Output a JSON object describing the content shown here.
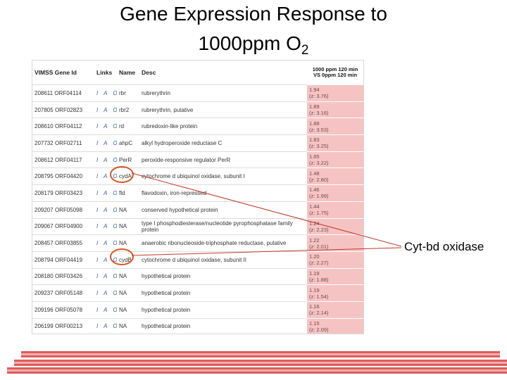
{
  "title": {
    "line1": "Gene Expression Response to",
    "line2": "1000ppm O",
    "line2_sub": "2"
  },
  "table": {
    "headers": {
      "vimss": "VIMSS Gene Id",
      "links": "Links",
      "name": "Name",
      "desc": "Desc",
      "score": "1000 ppm 120 min VS 0ppm 120 min"
    },
    "rows": [
      {
        "vimss": "208611",
        "orf": "ORF04114",
        "links": "I A O",
        "name": "rbr",
        "desc": "rubrerythrin",
        "score": "1.94",
        "z": "(z: 3.76)"
      },
      {
        "vimss": "207805",
        "orf": "ORF02823",
        "links": "I A O",
        "name": "rbr2",
        "desc": "rubrerythrin, putative",
        "score": "1.89",
        "z": "(z: 3.16)"
      },
      {
        "vimss": "208610",
        "orf": "ORF04112",
        "links": "I A O",
        "name": "rd",
        "desc": "rubredoxin-like protein",
        "score": "1.88",
        "z": "(z: 3.53)"
      },
      {
        "vimss": "207732",
        "orf": "ORF02711",
        "links": "I A O",
        "name": "ahpC",
        "desc": "alkyl hydroperoxide reductase C",
        "score": "1.83",
        "z": "(z: 3.25)"
      },
      {
        "vimss": "208612",
        "orf": "ORF04117",
        "links": "I A O",
        "name": "PerR",
        "desc": "peroxide-responsive regulator PerR",
        "score": "1.65",
        "z": "(z: 3.22)"
      },
      {
        "vimss": "208795",
        "orf": "ORF04420",
        "links": "I A O",
        "name": "cydA",
        "desc": "cytochrome d ubiquinol oxidase, subunit I",
        "score": "1.48",
        "z": "(z: 2.80)"
      },
      {
        "vimss": "208179",
        "orf": "ORF03423",
        "links": "I A O",
        "name": "fld",
        "desc": "flavodoxin, iron-repressed",
        "score": "1.46",
        "z": "(z: 1.99)"
      },
      {
        "vimss": "209207",
        "orf": "ORF05098",
        "links": "I A O",
        "name": "NA",
        "desc": "conserved hypothetical protein",
        "score": "1.44",
        "z": "(z: 1.75)"
      },
      {
        "vimss": "209067",
        "orf": "ORF04900",
        "links": "I A O",
        "name": "NA",
        "desc": "type I phosphodiesterase/nucleotide pyrophosphatase family protein",
        "score": "1.24",
        "z": "(z: 2.23)"
      },
      {
        "vimss": "208457",
        "orf": "ORF03855",
        "links": "I A O",
        "name": "NA",
        "desc": "anaerobic ribonucleoside-triphosphate reductase, putative",
        "score": "1.22",
        "z": "(z: 2.01)"
      },
      {
        "vimss": "208794",
        "orf": "ORF04419",
        "links": "I A O",
        "name": "cydB",
        "desc": "cytochrome d ubiquinol oxidase, subunit II",
        "score": "1.20",
        "z": "(z: 2.27)"
      },
      {
        "vimss": "208180",
        "orf": "ORF03426",
        "links": "I A O",
        "name": "NA",
        "desc": "hypothetical protein",
        "score": "1.19",
        "z": "(z: 1.88)"
      },
      {
        "vimss": "209237",
        "orf": "ORF05148",
        "links": "I A O",
        "name": "NA",
        "desc": "hypothetical protein",
        "score": "1.19",
        "z": "(z: 1.54)"
      },
      {
        "vimss": "209196",
        "orf": "ORF05078",
        "links": "I A O",
        "name": "NA",
        "desc": "hypothetical protein",
        "score": "1.16",
        "z": "(z: 2.14)"
      },
      {
        "vimss": "206199",
        "orf": "ORF00213",
        "links": "I A O",
        "name": "NA",
        "desc": "hypothetical protein",
        "score": "1.15",
        "z": "(z: 2.09)"
      }
    ]
  },
  "callout": "Cyt-bd oxidase",
  "colors": {
    "score_bg": "#f6c3c3",
    "circle": "#d9541f",
    "leader": "#c0392b",
    "watermark": "#d93f3f"
  }
}
